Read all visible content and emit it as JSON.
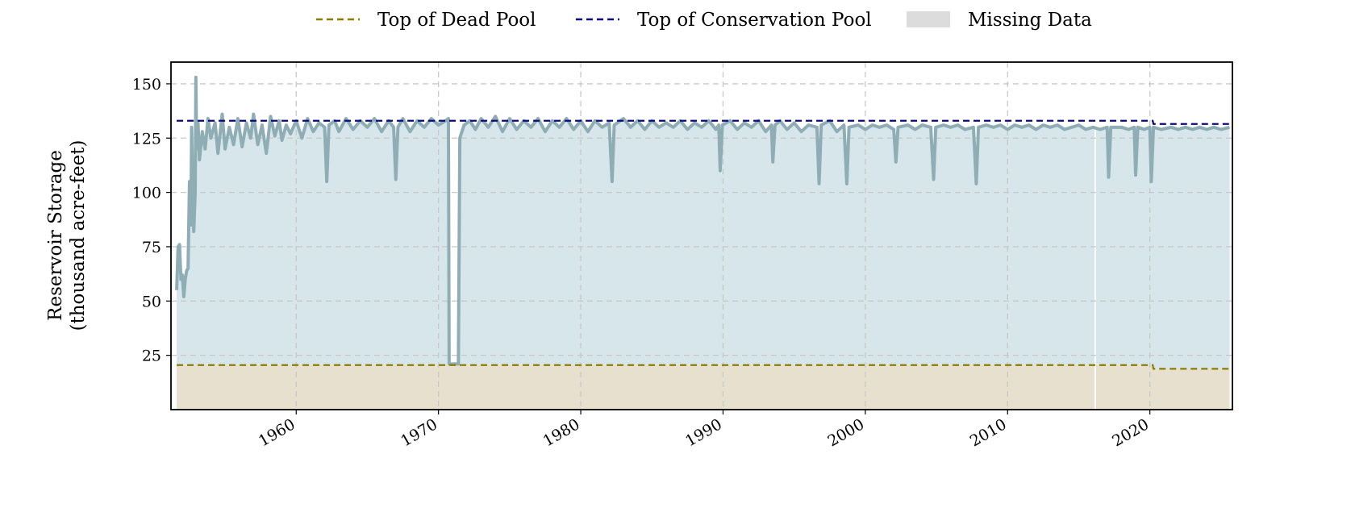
{
  "chart_data": {
    "type": "area",
    "title": "",
    "xlabel": "",
    "ylabel": [
      "Reservoir Storage",
      "(thousand acre-feet)"
    ],
    "xlim": [
      1951.2,
      2025.8
    ],
    "ylim": [
      0,
      160
    ],
    "xticks": [
      1960,
      1970,
      1980,
      1990,
      2000,
      2010,
      2020
    ],
    "xtick_labels": [
      "1960",
      "1970",
      "1980",
      "1990",
      "2000",
      "2010",
      "2020"
    ],
    "yticks": [
      25,
      50,
      75,
      100,
      125,
      150
    ],
    "ytick_labels": [
      "25",
      "50",
      "75",
      "100",
      "125",
      "150"
    ],
    "grid": true,
    "legend_position": "top-center",
    "legend": {
      "dead_pool": "Top of Dead Pool",
      "conservation_pool": "Top of Conservation Pool",
      "missing_data": "Missing Data"
    },
    "colors": {
      "storage_line": "#8fadb5",
      "storage_fill": "#d6e6ea",
      "dead_pool_line": "#8b7d00",
      "dead_pool_fill": "#e8e0cf",
      "conservation_pool_line": "#0a0a80",
      "missing_data": "#dcdcdc",
      "grid": "#c8c8c8"
    },
    "top_of_dead_pool": [
      [
        1951.6,
        20.5
      ],
      [
        2020.2,
        20.5
      ],
      [
        2020.25,
        18.8
      ],
      [
        2025.6,
        18.8
      ]
    ],
    "top_of_conservation_pool": [
      [
        1951.6,
        133.0
      ],
      [
        2020.2,
        133.0
      ],
      [
        2020.25,
        131.5
      ],
      [
        2025.6,
        131.5
      ]
    ],
    "missing_data_ranges": [
      [
        2016.1,
        2016.2
      ]
    ],
    "storage": [
      [
        1951.6,
        55
      ],
      [
        1951.7,
        75
      ],
      [
        1951.8,
        76
      ],
      [
        1951.9,
        60
      ],
      [
        1952.0,
        62
      ],
      [
        1952.1,
        52
      ],
      [
        1952.2,
        60
      ],
      [
        1952.3,
        64
      ],
      [
        1952.4,
        65
      ],
      [
        1952.5,
        105
      ],
      [
        1952.6,
        85
      ],
      [
        1952.65,
        130
      ],
      [
        1952.75,
        90
      ],
      [
        1952.8,
        82
      ],
      [
        1952.9,
        100
      ],
      [
        1952.95,
        153
      ],
      [
        1953.0,
        120
      ],
      [
        1953.1,
        132
      ],
      [
        1953.2,
        115
      ],
      [
        1953.4,
        128
      ],
      [
        1953.6,
        120
      ],
      [
        1953.8,
        134
      ],
      [
        1954.0,
        125
      ],
      [
        1954.3,
        132
      ],
      [
        1954.5,
        118
      ],
      [
        1954.8,
        136
      ],
      [
        1955.0,
        120
      ],
      [
        1955.3,
        130
      ],
      [
        1955.6,
        122
      ],
      [
        1955.9,
        134
      ],
      [
        1956.2,
        121
      ],
      [
        1956.5,
        132
      ],
      [
        1956.8,
        125
      ],
      [
        1957.0,
        136
      ],
      [
        1957.3,
        122
      ],
      [
        1957.6,
        131
      ],
      [
        1957.9,
        118
      ],
      [
        1958.2,
        135
      ],
      [
        1958.5,
        126
      ],
      [
        1958.8,
        133
      ],
      [
        1959.0,
        124
      ],
      [
        1959.3,
        131
      ],
      [
        1959.6,
        127
      ],
      [
        1960.0,
        133
      ],
      [
        1960.4,
        125
      ],
      [
        1960.8,
        134
      ],
      [
        1961.2,
        128
      ],
      [
        1961.6,
        132
      ],
      [
        1962.0,
        130
      ],
      [
        1962.15,
        105
      ],
      [
        1962.3,
        131
      ],
      [
        1962.7,
        133
      ],
      [
        1963.0,
        128
      ],
      [
        1963.5,
        134
      ],
      [
        1964.0,
        129
      ],
      [
        1964.5,
        133
      ],
      [
        1965.0,
        130
      ],
      [
        1965.5,
        134
      ],
      [
        1966.0,
        128
      ],
      [
        1966.5,
        133
      ],
      [
        1966.85,
        130
      ],
      [
        1967.0,
        106
      ],
      [
        1967.15,
        130
      ],
      [
        1967.5,
        134
      ],
      [
        1968.0,
        128
      ],
      [
        1968.5,
        133
      ],
      [
        1969.0,
        130
      ],
      [
        1969.5,
        134
      ],
      [
        1970.0,
        131
      ],
      [
        1970.5,
        133
      ],
      [
        1970.7,
        134
      ],
      [
        1970.75,
        21
      ],
      [
        1971.4,
        21
      ],
      [
        1971.5,
        125
      ],
      [
        1971.8,
        131
      ],
      [
        1972.2,
        133
      ],
      [
        1972.6,
        129
      ],
      [
        1973.0,
        134
      ],
      [
        1973.5,
        130
      ],
      [
        1974.0,
        135
      ],
      [
        1974.5,
        128
      ],
      [
        1975.0,
        134
      ],
      [
        1975.5,
        129
      ],
      [
        1976.0,
        133
      ],
      [
        1976.5,
        130
      ],
      [
        1977.0,
        134
      ],
      [
        1977.5,
        128
      ],
      [
        1978.0,
        133
      ],
      [
        1978.5,
        130
      ],
      [
        1979.0,
        134
      ],
      [
        1979.5,
        129
      ],
      [
        1980.0,
        133
      ],
      [
        1980.5,
        128
      ],
      [
        1981.0,
        133
      ],
      [
        1981.5,
        130
      ],
      [
        1982.0,
        132
      ],
      [
        1982.2,
        105
      ],
      [
        1982.35,
        131
      ],
      [
        1983.0,
        134
      ],
      [
        1983.5,
        130
      ],
      [
        1984.0,
        133
      ],
      [
        1984.5,
        129
      ],
      [
        1985.0,
        133
      ],
      [
        1985.5,
        130
      ],
      [
        1986.0,
        132
      ],
      [
        1986.5,
        130
      ],
      [
        1987.0,
        133
      ],
      [
        1987.5,
        129
      ],
      [
        1988.0,
        132
      ],
      [
        1988.5,
        130
      ],
      [
        1989.0,
        133
      ],
      [
        1989.5,
        129
      ],
      [
        1989.7,
        131
      ],
      [
        1989.8,
        110
      ],
      [
        1989.95,
        131
      ],
      [
        1990.5,
        133
      ],
      [
        1991.0,
        129
      ],
      [
        1991.5,
        132
      ],
      [
        1992.0,
        130
      ],
      [
        1992.5,
        133
      ],
      [
        1993.0,
        128
      ],
      [
        1993.4,
        131
      ],
      [
        1993.5,
        114
      ],
      [
        1993.65,
        131
      ],
      [
        1994.0,
        133
      ],
      [
        1994.5,
        129
      ],
      [
        1995.0,
        132
      ],
      [
        1995.5,
        128
      ],
      [
        1996.0,
        131
      ],
      [
        1996.6,
        130
      ],
      [
        1996.75,
        104
      ],
      [
        1996.9,
        131
      ],
      [
        1997.5,
        133
      ],
      [
        1998.0,
        128
      ],
      [
        1998.5,
        131
      ],
      [
        1998.7,
        104
      ],
      [
        1998.85,
        130
      ],
      [
        1999.5,
        131
      ],
      [
        2000.0,
        129
      ],
      [
        2000.5,
        131
      ],
      [
        2001.0,
        130
      ],
      [
        2001.5,
        131
      ],
      [
        2002.0,
        129
      ],
      [
        2002.15,
        114
      ],
      [
        2002.3,
        130
      ],
      [
        2003.0,
        131
      ],
      [
        2003.5,
        129
      ],
      [
        2004.0,
        131
      ],
      [
        2004.6,
        130
      ],
      [
        2004.8,
        106
      ],
      [
        2004.95,
        130
      ],
      [
        2005.5,
        131
      ],
      [
        2006.0,
        130
      ],
      [
        2006.5,
        131
      ],
      [
        2007.0,
        129
      ],
      [
        2007.6,
        130
      ],
      [
        2007.8,
        104
      ],
      [
        2007.95,
        130
      ],
      [
        2008.5,
        131
      ],
      [
        2009.0,
        130
      ],
      [
        2009.5,
        131
      ],
      [
        2010.0,
        129
      ],
      [
        2010.5,
        131
      ],
      [
        2011.0,
        130
      ],
      [
        2011.5,
        131
      ],
      [
        2012.0,
        129
      ],
      [
        2012.5,
        131
      ],
      [
        2013.0,
        130
      ],
      [
        2013.5,
        131
      ],
      [
        2014.0,
        129
      ],
      [
        2014.5,
        130
      ],
      [
        2015.0,
        131
      ],
      [
        2015.5,
        129
      ],
      [
        2016.0,
        130
      ],
      [
        2016.5,
        129
      ],
      [
        2017.0,
        130
      ],
      [
        2017.1,
        107
      ],
      [
        2017.25,
        130
      ],
      [
        2018.0,
        130
      ],
      [
        2018.5,
        129
      ],
      [
        2018.9,
        130
      ],
      [
        2019.0,
        108
      ],
      [
        2019.15,
        130
      ],
      [
        2019.6,
        129
      ],
      [
        2020.0,
        130
      ],
      [
        2020.1,
        105
      ],
      [
        2020.25,
        130
      ],
      [
        2020.8,
        129
      ],
      [
        2021.5,
        130
      ],
      [
        2022.0,
        129
      ],
      [
        2022.5,
        130
      ],
      [
        2023.0,
        129
      ],
      [
        2023.5,
        130
      ],
      [
        2024.0,
        129
      ],
      [
        2024.5,
        130
      ],
      [
        2025.0,
        129
      ],
      [
        2025.6,
        130
      ]
    ]
  }
}
